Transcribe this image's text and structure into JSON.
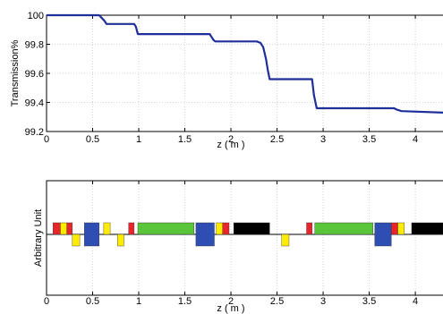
{
  "chart_data": [
    {
      "type": "line",
      "title": "",
      "xlabel": "z ( m )",
      "ylabel": "Transmission%",
      "xlim": [
        0,
        4.3
      ],
      "ylim": [
        99.2,
        100
      ],
      "grid": true,
      "x_ticks": [
        "0",
        "0.5",
        "1",
        "1.5",
        "2",
        "2.5",
        "3",
        "3.5",
        "4"
      ],
      "y_ticks": [
        "99.2",
        "99.4",
        "99.6",
        "99.8",
        "100"
      ],
      "line_color": "#1f2f9a",
      "series": [
        {
          "x": [
            0,
            0.57,
            0.6,
            0.63,
            0.65,
            0.95,
            0.97,
            0.99,
            1.77,
            1.79,
            1.81,
            1.83,
            2.28,
            2.32,
            2.35,
            2.38,
            2.4,
            2.42,
            2.88,
            2.9,
            2.93,
            3.77,
            3.8,
            3.85,
            4.3
          ],
          "y": [
            100,
            100,
            99.98,
            99.96,
            99.94,
            99.94,
            99.92,
            99.87,
            99.87,
            99.85,
            99.83,
            99.82,
            99.82,
            99.81,
            99.78,
            99.7,
            99.62,
            99.56,
            99.56,
            99.45,
            99.36,
            99.36,
            99.35,
            99.34,
            99.33
          ]
        }
      ]
    },
    {
      "type": "bar",
      "title": "",
      "xlabel": "z ( m )",
      "ylabel": "Arbitrary Unit",
      "xlim": [
        0,
        4.3
      ],
      "grid": true,
      "x_ticks": [
        "0",
        "0.5",
        "1",
        "1.5",
        "2",
        "2.5",
        "3",
        "3.5",
        "4"
      ],
      "colors": {
        "red": "#e8252a",
        "yellow": "#ffec00",
        "blue": "#2e4eb4",
        "green": "#5ac43a",
        "black": "#000000"
      },
      "elements": [
        {
          "color": "red",
          "start": 0.07,
          "end": 0.15,
          "top": 1,
          "bottom": 0
        },
        {
          "color": "yellow",
          "start": 0.15,
          "end": 0.22,
          "top": 1,
          "bottom": 0
        },
        {
          "color": "red",
          "start": 0.22,
          "end": 0.28,
          "top": 1,
          "bottom": 0
        },
        {
          "color": "yellow",
          "start": 0.28,
          "end": 0.36,
          "top": 0,
          "bottom": -1
        },
        {
          "color": "blue",
          "start": 0.41,
          "end": 0.57,
          "top": 1,
          "bottom": -1
        },
        {
          "color": "yellow",
          "start": 0.62,
          "end": 0.69,
          "top": 1,
          "bottom": 0
        },
        {
          "color": "yellow",
          "start": 0.77,
          "end": 0.84,
          "top": 0,
          "bottom": -1
        },
        {
          "color": "red",
          "start": 0.89,
          "end": 0.95,
          "top": 1,
          "bottom": 0
        },
        {
          "color": "green",
          "start": 0.99,
          "end": 1.6,
          "top": 1,
          "bottom": 0
        },
        {
          "color": "blue",
          "start": 1.62,
          "end": 1.82,
          "top": 1,
          "bottom": -1
        },
        {
          "color": "yellow",
          "start": 1.84,
          "end": 1.91,
          "top": 1,
          "bottom": 0
        },
        {
          "color": "red",
          "start": 1.91,
          "end": 1.98,
          "top": 1,
          "bottom": 0
        },
        {
          "color": "black",
          "start": 2.03,
          "end": 2.42,
          "top": 1,
          "bottom": 0
        },
        {
          "color": "yellow",
          "start": 2.55,
          "end": 2.63,
          "top": 0,
          "bottom": -1
        },
        {
          "color": "red",
          "start": 2.82,
          "end": 2.88,
          "top": 1,
          "bottom": 0
        },
        {
          "color": "green",
          "start": 2.91,
          "end": 3.54,
          "top": 1,
          "bottom": 0
        },
        {
          "color": "blue",
          "start": 3.56,
          "end": 3.74,
          "top": 1,
          "bottom": -1
        },
        {
          "color": "red",
          "start": 3.74,
          "end": 3.81,
          "top": 1,
          "bottom": 0
        },
        {
          "color": "yellow",
          "start": 3.81,
          "end": 3.88,
          "top": 1,
          "bottom": 0
        },
        {
          "color": "black",
          "start": 3.96,
          "end": 4.3,
          "top": 1,
          "bottom": 0
        }
      ]
    }
  ]
}
